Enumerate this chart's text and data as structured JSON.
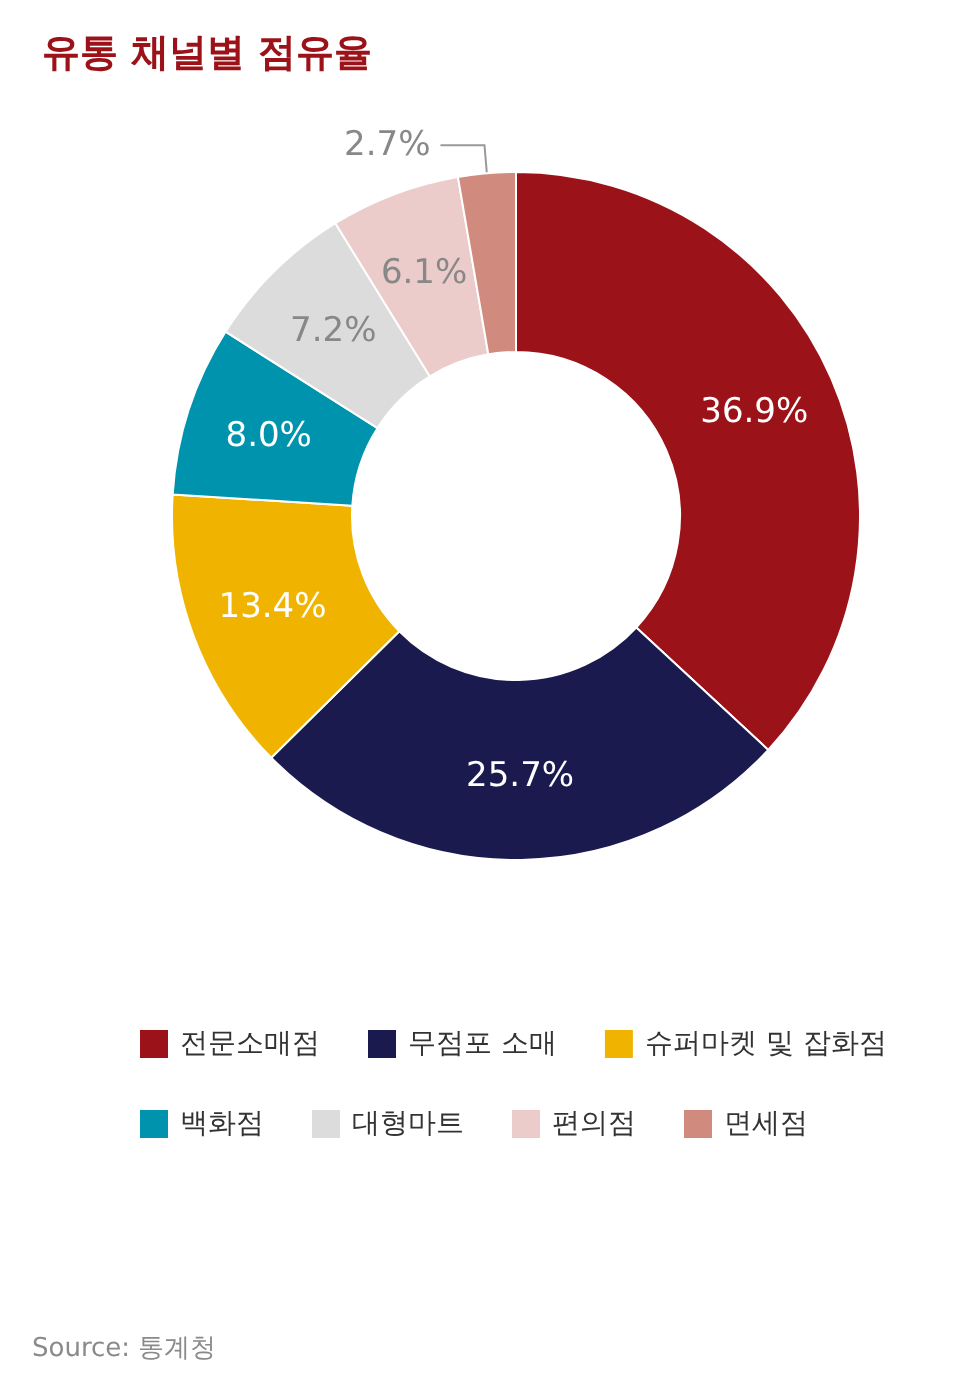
{
  "chart_data": {
    "type": "donut",
    "title": "유통 채널별 점유율",
    "categories": [
      "전문소매점",
      "무점포 소매",
      "슈퍼마켓 및 잡화점",
      "백화점",
      "대형마트",
      "편의점",
      "면세점"
    ],
    "values": [
      36.9,
      25.7,
      13.4,
      8.0,
      7.2,
      6.1,
      2.7
    ],
    "colors": [
      "#9b1218",
      "#1b1a4f",
      "#f0b400",
      "#0093ad",
      "#dcdcdc",
      "#ecccca",
      "#d08a7e"
    ],
    "value_labels": [
      "36.9%",
      "25.7%",
      "13.4%",
      "8.0%",
      "7.2%",
      "6.1%",
      "2.7%"
    ],
    "legend": "bottom",
    "annotations": [
      "Source: 통계청"
    ]
  }
}
